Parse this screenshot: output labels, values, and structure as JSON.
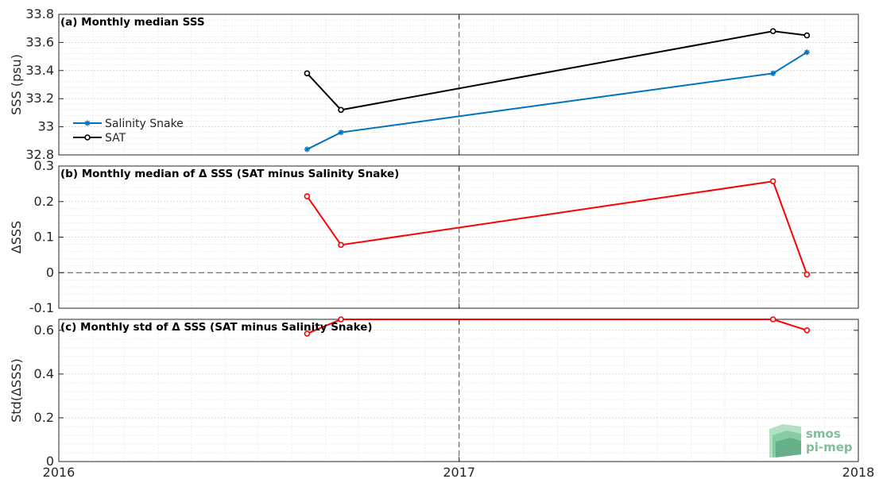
{
  "chart_data": [
    {
      "type": "line",
      "title": "(a) Monthly median SSS",
      "ylabel": "SSS (psu)",
      "xlabel": "",
      "xlim": [
        "2016-01-01",
        "2018-01-01"
      ],
      "ylim": [
        32.8,
        33.8
      ],
      "yticks": [
        "32.8",
        "33",
        "33.2",
        "33.4",
        "33.6",
        "33.8"
      ],
      "grid": true,
      "legend": {
        "placement": "left",
        "entries": [
          "Salinity Snake",
          "SAT"
        ]
      },
      "x": [
        "2016-08-15",
        "2016-09-15",
        "2017-10-15",
        "2017-11-15"
      ],
      "series": [
        {
          "name": "Salinity Snake",
          "color": "#0072BD",
          "marker": "star",
          "values": [
            32.84,
            32.96,
            33.38,
            33.53
          ]
        },
        {
          "name": "SAT",
          "color": "#000000",
          "marker": "circle",
          "values": [
            33.38,
            33.12,
            33.68,
            33.65
          ]
        }
      ]
    },
    {
      "type": "line",
      "title": "(b) Monthly median of Δ SSS (SAT minus Salinity Snake)",
      "ylabel": "ΔSSS",
      "xlabel": "",
      "xlim": [
        "2016-01-01",
        "2018-01-01"
      ],
      "ylim": [
        -0.1,
        0.3
      ],
      "yticks": [
        "-0.1",
        "0",
        "0.1",
        "0.2",
        "0.3"
      ],
      "grid": true,
      "zero_line": true,
      "x": [
        "2016-08-15",
        "2016-09-15",
        "2017-10-15",
        "2017-11-15"
      ],
      "series": [
        {
          "color": "#FF0000",
          "marker": "circle",
          "values": [
            0.215,
            0.078,
            0.257,
            -0.005
          ]
        }
      ]
    },
    {
      "type": "line",
      "title": "(c) Monthly std of Δ SSS (SAT minus Salinity Snake)",
      "ylabel": "Std(ΔSSS)",
      "xlabel": "",
      "xlim": [
        "2016-01-01",
        "2018-01-01"
      ],
      "ylim": [
        0,
        0.65
      ],
      "yticks": [
        "0",
        "0.2",
        "0.4",
        "0.6"
      ],
      "xticks": [
        "2016",
        "2017",
        "2018"
      ],
      "grid": true,
      "x": [
        "2016-08-15",
        "2016-09-15",
        "2017-10-15",
        "2017-11-15"
      ],
      "series": [
        {
          "color": "#FF0000",
          "marker": "circle",
          "values": [
            0.585,
            0.65,
            0.65,
            0.6
          ]
        }
      ]
    }
  ],
  "logo": {
    "line1": "smos",
    "line2": "pi-mep"
  }
}
